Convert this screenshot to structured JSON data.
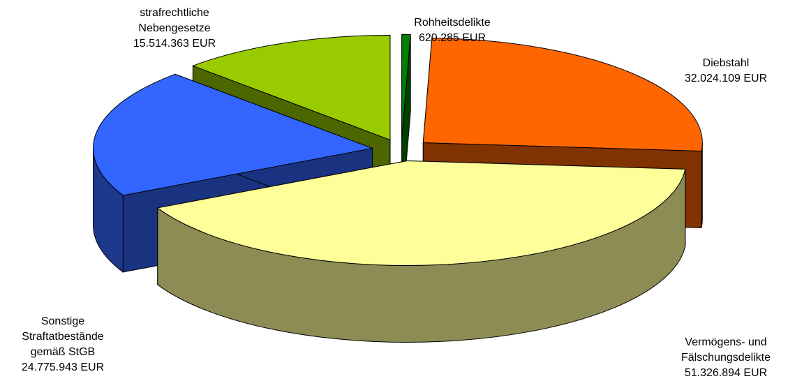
{
  "chart_data": {
    "type": "pie3d",
    "categories": [
      "Rohheitsdelikte",
      "Diebstahl",
      "Vermögens- und Fälschungsdelikte",
      "Sonstige Straftatbestände gemäß StGB",
      "strafrechtliche Nebengesetze"
    ],
    "values": [
      620285,
      32024109,
      51326894,
      24775943,
      15514363
    ],
    "value_labels": [
      "620.285 EUR",
      "32.024.109 EUR",
      "51.326.894 EUR",
      "24.775.943 EUR",
      "15.514.363 EUR"
    ],
    "colors": [
      "#008000",
      "#ff6600",
      "#ffff99",
      "#3366ff",
      "#99cc00"
    ]
  }
}
